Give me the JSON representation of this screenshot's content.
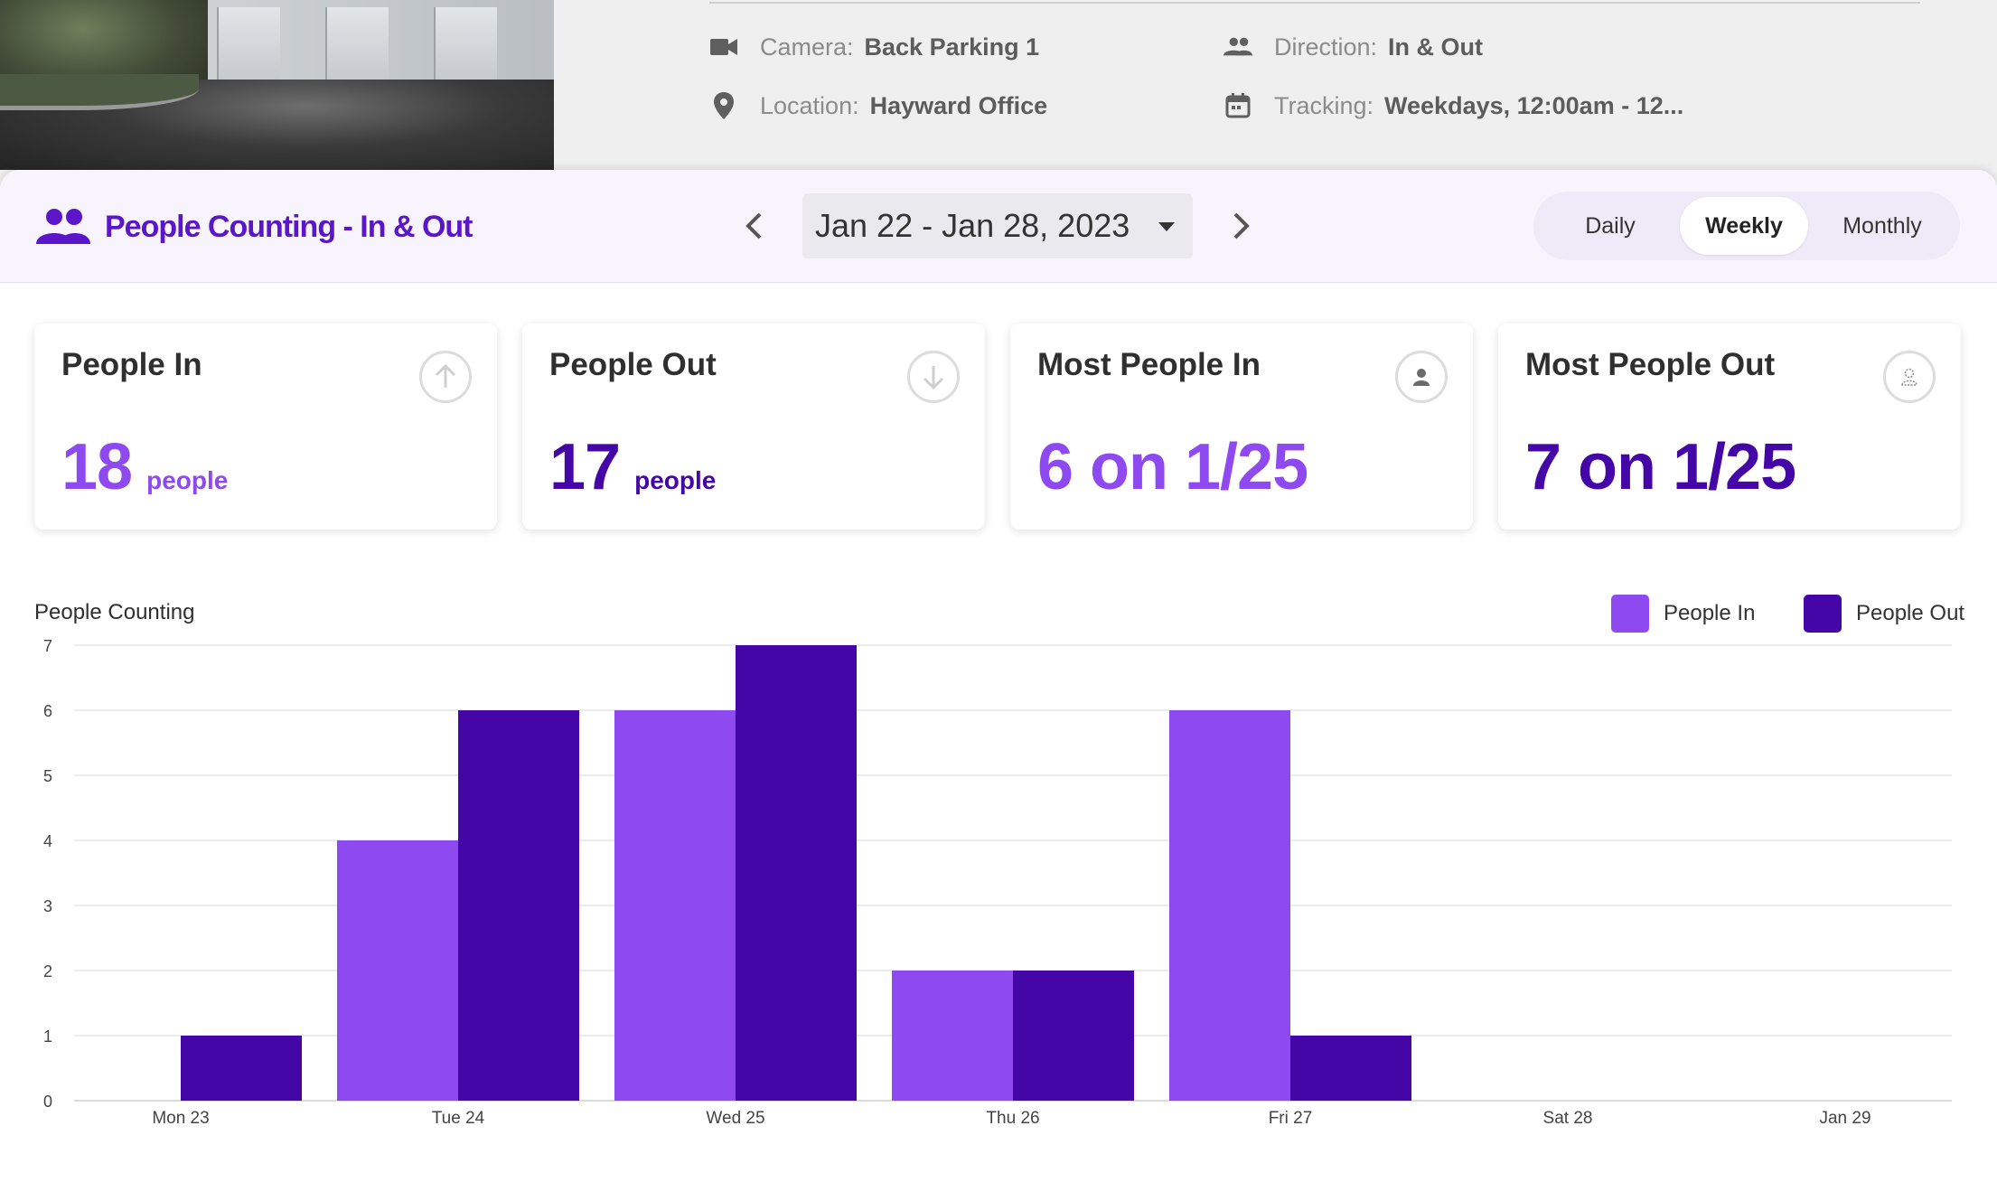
{
  "camera_info": {
    "camera": {
      "label": "Camera:",
      "value": "Back Parking 1"
    },
    "direction": {
      "label": "Direction:",
      "value": "In & Out"
    },
    "location": {
      "label": "Location:",
      "value": "Hayward Office"
    },
    "tracking": {
      "label": "Tracking:",
      "value": "Weekdays, 12:00am - 12..."
    }
  },
  "header": {
    "title": "People Counting - In & Out",
    "date_range": "Jan 22 - Jan 28, 2023",
    "range_tabs": [
      {
        "label": "Daily",
        "active": false
      },
      {
        "label": "Weekly",
        "active": true
      },
      {
        "label": "Monthly",
        "active": false
      }
    ]
  },
  "cards": [
    {
      "title": "People In",
      "value": "18",
      "unit": "people",
      "icon": "arrow-up-circle-icon",
      "color": "#8e4af0"
    },
    {
      "title": "People Out",
      "value": "17",
      "unit": "people",
      "icon": "arrow-down-circle-icon",
      "color": "#4506a8"
    },
    {
      "title": "Most People In",
      "value": "6 on 1/25",
      "unit": "",
      "icon": "person-icon",
      "color": "#8e4af0"
    },
    {
      "title": "Most People Out",
      "value": "7 on 1/25",
      "unit": "",
      "icon": "person-outline-icon",
      "color": "#4506a8"
    }
  ],
  "colors": {
    "people_in": "#8e4af0",
    "people_out": "#4506a8",
    "accent": "#5b16c9"
  },
  "chart_data": {
    "type": "bar",
    "title": "People Counting",
    "categories": [
      "Mon 23",
      "Tue 24",
      "Wed 25",
      "Thu 26",
      "Fri 27",
      "Sat 28",
      "Jan 29"
    ],
    "series": [
      {
        "name": "People In",
        "values": [
          0,
          4,
          6,
          2,
          6,
          0,
          0
        ]
      },
      {
        "name": "People Out",
        "values": [
          1,
          6,
          7,
          2,
          1,
          0,
          0
        ]
      }
    ],
    "ylim": [
      0,
      7
    ],
    "yticks": [
      0,
      1,
      2,
      3,
      4,
      5,
      6,
      7
    ],
    "grid": true,
    "legend": "top-right"
  }
}
